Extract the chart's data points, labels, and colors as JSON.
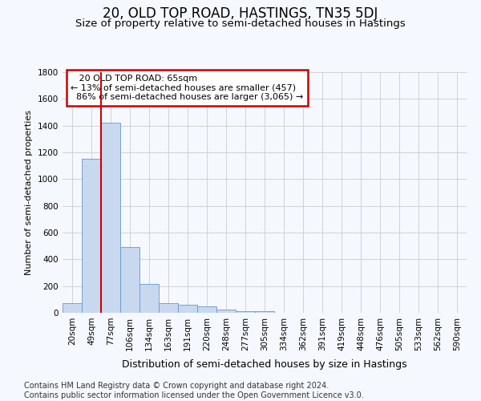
{
  "title": "20, OLD TOP ROAD, HASTINGS, TN35 5DJ",
  "subtitle": "Size of property relative to semi-detached houses in Hastings",
  "xlabel": "Distribution of semi-detached houses by size in Hastings",
  "ylabel": "Number of semi-detached properties",
  "categories": [
    "20sqm",
    "49sqm",
    "77sqm",
    "106sqm",
    "134sqm",
    "163sqm",
    "191sqm",
    "220sqm",
    "248sqm",
    "277sqm",
    "305sqm",
    "334sqm",
    "362sqm",
    "391sqm",
    "419sqm",
    "448sqm",
    "476sqm",
    "505sqm",
    "533sqm",
    "562sqm",
    "590sqm"
  ],
  "values": [
    75,
    1150,
    1420,
    490,
    215,
    75,
    60,
    50,
    25,
    15,
    10,
    0,
    0,
    0,
    0,
    0,
    0,
    0,
    0,
    0,
    0
  ],
  "bar_color": "#c8d8ee",
  "bar_edge_color": "#6699cc",
  "grid_color": "#cccccc",
  "background_color": "#f5f8ff",
  "property_label": "20 OLD TOP ROAD: 65sqm",
  "pct_smaller": 13,
  "pct_smaller_count": 457,
  "pct_larger": 86,
  "pct_larger_count": 3065,
  "annotation_box_color": "#ffffff",
  "annotation_border_color": "#cc0000",
  "vline_color": "#cc0000",
  "vline_x_index": 1.5,
  "ylim": [
    0,
    1800
  ],
  "yticks": [
    0,
    200,
    400,
    600,
    800,
    1000,
    1200,
    1400,
    1600,
    1800
  ],
  "footer": "Contains HM Land Registry data © Crown copyright and database right 2024.\nContains public sector information licensed under the Open Government Licence v3.0.",
  "title_fontsize": 12,
  "subtitle_fontsize": 9.5,
  "xlabel_fontsize": 9,
  "ylabel_fontsize": 8,
  "tick_fontsize": 7.5,
  "ann_fontsize": 8,
  "footer_fontsize": 7
}
